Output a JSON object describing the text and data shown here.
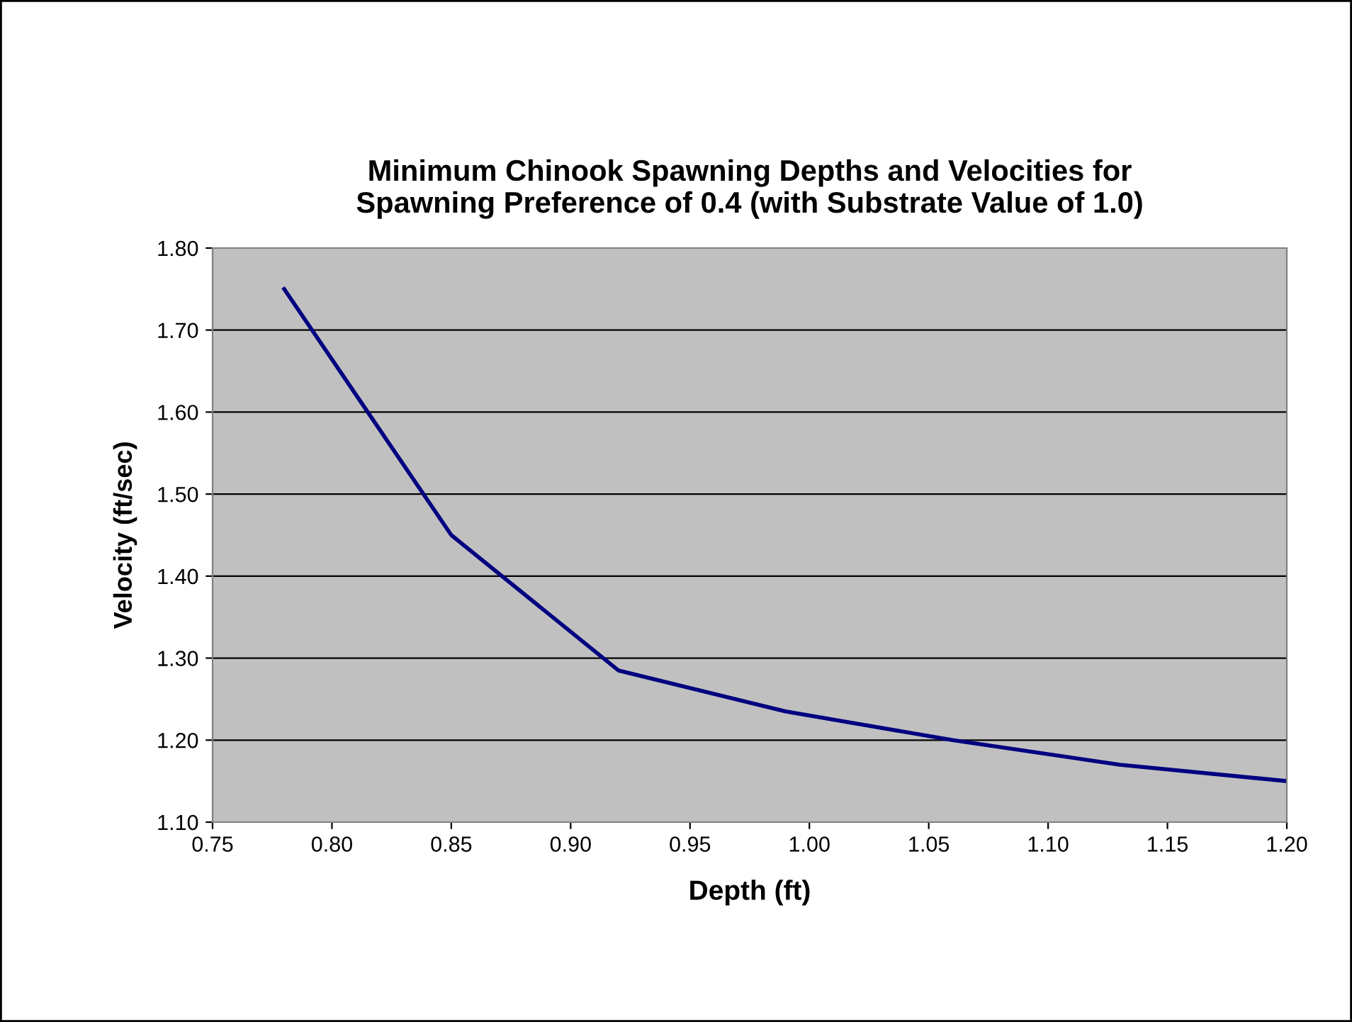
{
  "chart_data": {
    "type": "line",
    "title": "Minimum Chinook Spawning Depths and Velocities for\nSpawning Preference of 0.4 (with Substrate Value of 1.0)",
    "xlabel": "Depth (ft)",
    "ylabel": "Velocity (ft/sec)",
    "x": [
      0.78,
      0.85,
      0.92,
      0.99,
      1.06,
      1.13,
      1.2
    ],
    "series": [
      {
        "color": "#000080",
        "values": [
          1.75,
          1.45,
          1.285,
          1.235,
          1.2,
          1.17,
          1.15
        ]
      }
    ],
    "xlim": [
      0.75,
      1.2
    ],
    "xticks": [
      {
        "value": 0.75,
        "label": "0.75"
      },
      {
        "value": 0.8,
        "label": "0.80"
      },
      {
        "value": 0.85,
        "label": "0.85"
      },
      {
        "value": 0.9,
        "label": "0.90"
      },
      {
        "value": 0.95,
        "label": "0.95"
      },
      {
        "value": 1.0,
        "label": "1.00"
      },
      {
        "value": 1.05,
        "label": "1.05"
      },
      {
        "value": 1.1,
        "label": "1.10"
      },
      {
        "value": 1.15,
        "label": "1.15"
      },
      {
        "value": 1.2,
        "label": "1.20"
      }
    ],
    "ylim": [
      1.1,
      1.8
    ],
    "yticks": [
      {
        "value": 1.1,
        "label": "1.10"
      },
      {
        "value": 1.2,
        "label": "1.20"
      },
      {
        "value": 1.3,
        "label": "1.30"
      },
      {
        "value": 1.4,
        "label": "1.40"
      },
      {
        "value": 1.5,
        "label": "1.50"
      },
      {
        "value": 1.6,
        "label": "1.60"
      },
      {
        "value": 1.7,
        "label": "1.70"
      },
      {
        "value": 1.8,
        "label": "1.80"
      }
    ],
    "grid": "y",
    "legend": false,
    "marker": "none",
    "line_style": "solid"
  }
}
